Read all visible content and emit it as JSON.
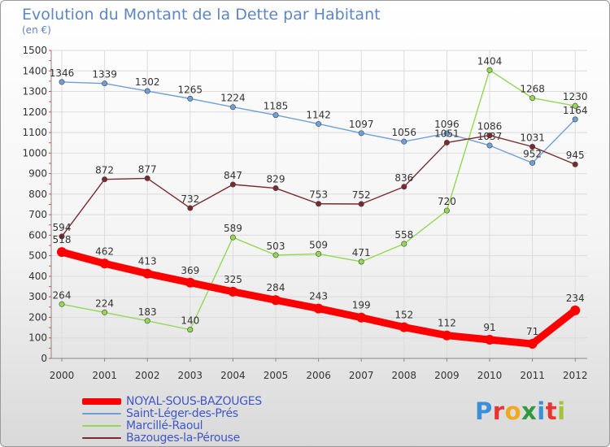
{
  "chart_data": {
    "type": "line",
    "title": "Evolution du Montant de la Dette par Habitant",
    "subtitle": "(en €)",
    "x": [
      "2000",
      "2001",
      "2002",
      "2003",
      "2004",
      "2005",
      "2006",
      "2007",
      "2008",
      "2009",
      "2010",
      "2011",
      "2012"
    ],
    "ylim": [
      0,
      1500
    ],
    "yticks": [
      0,
      100,
      200,
      300,
      400,
      500,
      600,
      700,
      800,
      900,
      1000,
      1100,
      1200,
      1300,
      1400,
      1500
    ],
    "grid": true,
    "legend_position": "bottom-left",
    "series": [
      {
        "name": "NOYAL-SOUS-BAZOUGES",
        "color": "#ff0000",
        "emphasis": true,
        "values": [
          518,
          462,
          413,
          369,
          325,
          284,
          243,
          199,
          152,
          112,
          91,
          71,
          234
        ]
      },
      {
        "name": "Saint-Léger-des-Prés",
        "color": "#6f9fd8",
        "values": [
          1346,
          1339,
          1302,
          1265,
          1224,
          1185,
          1142,
          1097,
          1056,
          1096,
          1037,
          952,
          1164
        ]
      },
      {
        "name": "Marcillé-Raoul",
        "color": "#92d852",
        "values": [
          264,
          224,
          183,
          140,
          589,
          503,
          509,
          471,
          558,
          720,
          1404,
          1268,
          1230
        ]
      },
      {
        "name": "Bazouges-la-Pérouse",
        "color": "#7a2a2e",
        "values": [
          594,
          872,
          877,
          732,
          847,
          829,
          753,
          752,
          836,
          1051,
          1086,
          1031,
          945
        ]
      }
    ]
  },
  "logo": {
    "text": "Proxiti",
    "letters": [
      {
        "ch": "P",
        "color": "#3b8fd6"
      },
      {
        "ch": "r",
        "color": "#e8352f"
      },
      {
        "ch": "o",
        "color": "#f0a81c"
      },
      {
        "ch": "x",
        "color": "#2f9a3d"
      },
      {
        "ch": "i",
        "color": "#3b8fd6"
      },
      {
        "ch": "t",
        "color": "#e8352f"
      },
      {
        "ch": "i",
        "color": "#a1c43c"
      }
    ]
  }
}
